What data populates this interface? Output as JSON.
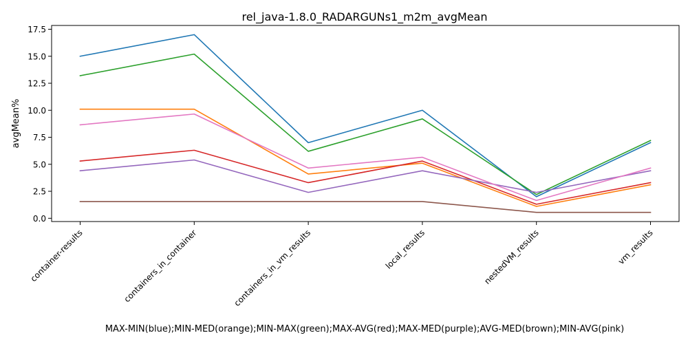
{
  "chart_data": {
    "type": "line",
    "title": "rel_java-1.8.0_RADARGUNs1_m2m_avgMean",
    "xlabel": "MAX-MIN(blue);MIN-MED(orange);MIN-MAX(green);MAX-AVG(red);MAX-MED(purple);AVG-MED(brown);MIN-AVG(pink)",
    "ylabel": "avgMean%",
    "categories": [
      "container-results",
      "containers_in_container",
      "containers_in_vm_results",
      "local_results",
      "nestedVM_results",
      "vm_results"
    ],
    "ylim": [
      -0.3,
      17.85
    ],
    "yticks": [
      "0.0",
      "2.5",
      "5.0",
      "7.5",
      "10.0",
      "12.5",
      "15.0",
      "17.5"
    ],
    "grid": false,
    "series": [
      {
        "color": "#1f77b4",
        "values": [
          15.0,
          17.0,
          7.0,
          10.0,
          2.0,
          7.0
        ]
      },
      {
        "color": "#ff7f0e",
        "values": [
          10.1,
          10.1,
          4.1,
          5.1,
          1.1,
          3.1
        ]
      },
      {
        "color": "#2ca02c",
        "values": [
          13.2,
          15.2,
          6.2,
          9.2,
          2.2,
          7.2
        ]
      },
      {
        "color": "#d62728",
        "values": [
          5.3,
          6.3,
          3.3,
          5.3,
          1.3,
          3.3
        ]
      },
      {
        "color": "#9467bd",
        "values": [
          4.4,
          5.4,
          2.4,
          4.4,
          2.4,
          4.4
        ]
      },
      {
        "color": "#8c564b",
        "values": [
          1.55,
          1.55,
          1.55,
          1.55,
          0.55,
          0.55
        ]
      },
      {
        "color": "#e377c2",
        "values": [
          8.65,
          9.65,
          4.65,
          5.65,
          1.65,
          4.65
        ]
      }
    ]
  }
}
